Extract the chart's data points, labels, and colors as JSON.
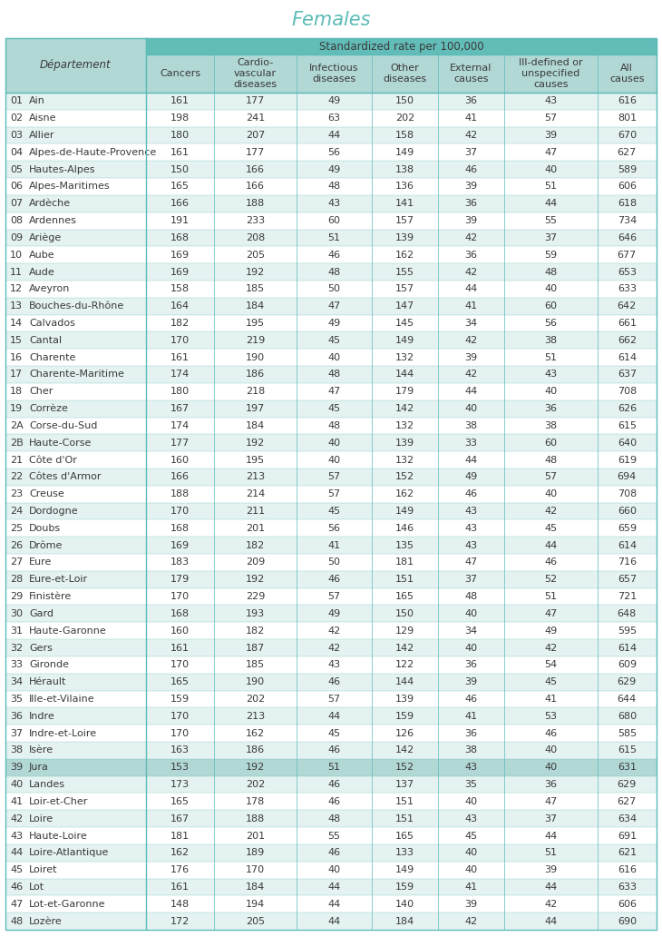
{
  "title": "Females",
  "subtitle": "Standardized rate per 100,000",
  "col_headers": [
    "Cancers",
    "Cardio-\nvascular\ndiseases",
    "Infectious\ndiseases",
    "Other\ndiseases",
    "External\ncauses",
    "Ill-defined or\nunspecified\ncauses",
    "All\ncauses"
  ],
  "dept_col_header": "Département",
  "rows": [
    [
      "01",
      "Ain",
      161,
      177,
      49,
      150,
      36,
      43,
      616
    ],
    [
      "02",
      "Aisne",
      198,
      241,
      63,
      202,
      41,
      57,
      801
    ],
    [
      "03",
      "Allier",
      180,
      207,
      44,
      158,
      42,
      39,
      670
    ],
    [
      "04",
      "Alpes-de-Haute-Provence",
      161,
      177,
      56,
      149,
      37,
      47,
      627
    ],
    [
      "05",
      "Hautes-Alpes",
      150,
      166,
      49,
      138,
      46,
      40,
      589
    ],
    [
      "06",
      "Alpes-Maritimes",
      165,
      166,
      48,
      136,
      39,
      51,
      606
    ],
    [
      "07",
      "Ardèche",
      166,
      188,
      43,
      141,
      36,
      44,
      618
    ],
    [
      "08",
      "Ardennes",
      191,
      233,
      60,
      157,
      39,
      55,
      734
    ],
    [
      "09",
      "Ariège",
      168,
      208,
      51,
      139,
      42,
      37,
      646
    ],
    [
      "10",
      "Aube",
      169,
      205,
      46,
      162,
      36,
      59,
      677
    ],
    [
      "11",
      "Aude",
      169,
      192,
      48,
      155,
      42,
      48,
      653
    ],
    [
      "12",
      "Aveyron",
      158,
      185,
      50,
      157,
      44,
      40,
      633
    ],
    [
      "13",
      "Bouches-du-Rhône",
      164,
      184,
      47,
      147,
      41,
      60,
      642
    ],
    [
      "14",
      "Calvados",
      182,
      195,
      49,
      145,
      34,
      56,
      661
    ],
    [
      "15",
      "Cantal",
      170,
      219,
      45,
      149,
      42,
      38,
      662
    ],
    [
      "16",
      "Charente",
      161,
      190,
      40,
      132,
      39,
      51,
      614
    ],
    [
      "17",
      "Charente-Maritime",
      174,
      186,
      48,
      144,
      42,
      43,
      637
    ],
    [
      "18",
      "Cher",
      180,
      218,
      47,
      179,
      44,
      40,
      708
    ],
    [
      "19",
      "Corrèze",
      167,
      197,
      45,
      142,
      40,
      36,
      626
    ],
    [
      "2A",
      "Corse-du-Sud",
      174,
      184,
      48,
      132,
      38,
      38,
      615
    ],
    [
      "2B",
      "Haute-Corse",
      177,
      192,
      40,
      139,
      33,
      60,
      640
    ],
    [
      "21",
      "Côte d'Or",
      160,
      195,
      40,
      132,
      44,
      48,
      619
    ],
    [
      "22",
      "Côtes d'Armor",
      166,
      213,
      57,
      152,
      49,
      57,
      694
    ],
    [
      "23",
      "Creuse",
      188,
      214,
      57,
      162,
      46,
      40,
      708
    ],
    [
      "24",
      "Dordogne",
      170,
      211,
      45,
      149,
      43,
      42,
      660
    ],
    [
      "25",
      "Doubs",
      168,
      201,
      56,
      146,
      43,
      45,
      659
    ],
    [
      "26",
      "Drôme",
      169,
      182,
      41,
      135,
      43,
      44,
      614
    ],
    [
      "27",
      "Eure",
      183,
      209,
      50,
      181,
      47,
      46,
      716
    ],
    [
      "28",
      "Eure-et-Loir",
      179,
      192,
      46,
      151,
      37,
      52,
      657
    ],
    [
      "29",
      "Finistère",
      170,
      229,
      57,
      165,
      48,
      51,
      721
    ],
    [
      "30",
      "Gard",
      168,
      193,
      49,
      150,
      40,
      47,
      648
    ],
    [
      "31",
      "Haute-Garonne",
      160,
      182,
      42,
      129,
      34,
      49,
      595
    ],
    [
      "32",
      "Gers",
      161,
      187,
      42,
      142,
      40,
      42,
      614
    ],
    [
      "33",
      "Gironde",
      170,
      185,
      43,
      122,
      36,
      54,
      609
    ],
    [
      "34",
      "Hérault",
      165,
      190,
      46,
      144,
      39,
      45,
      629
    ],
    [
      "35",
      "Ille-et-Vilaine",
      159,
      202,
      57,
      139,
      46,
      41,
      644
    ],
    [
      "36",
      "Indre",
      170,
      213,
      44,
      159,
      41,
      53,
      680
    ],
    [
      "37",
      "Indre-et-Loire",
      170,
      162,
      45,
      126,
      36,
      46,
      585
    ],
    [
      "38",
      "Isère",
      163,
      186,
      46,
      142,
      38,
      40,
      615
    ],
    [
      "39",
      "Jura",
      153,
      192,
      51,
      152,
      43,
      40,
      631
    ],
    [
      "40",
      "Landes",
      173,
      202,
      46,
      137,
      35,
      36,
      629
    ],
    [
      "41",
      "Loir-et-Cher",
      165,
      178,
      46,
      151,
      40,
      47,
      627
    ],
    [
      "42",
      "Loire",
      167,
      188,
      48,
      151,
      43,
      37,
      634
    ],
    [
      "43",
      "Haute-Loire",
      181,
      201,
      55,
      165,
      45,
      44,
      691
    ],
    [
      "44",
      "Loire-Atlantique",
      162,
      189,
      46,
      133,
      40,
      51,
      621
    ],
    [
      "45",
      "Loiret",
      176,
      170,
      40,
      149,
      40,
      39,
      616
    ],
    [
      "46",
      "Lot",
      161,
      184,
      44,
      159,
      41,
      44,
      633
    ],
    [
      "47",
      "Lot-et-Garonne",
      148,
      194,
      44,
      140,
      39,
      42,
      606
    ],
    [
      "48",
      "Lozère",
      172,
      205,
      44,
      184,
      42,
      44,
      690
    ]
  ],
  "highlight_dept": "39",
  "header_bg": "#62bdb9",
  "header_bg_light": "#b2d8d6",
  "row_bg_even": "#e4f2f1",
  "row_bg_odd": "#ffffff",
  "highlight_bg": "#b2d8d6",
  "text_color": "#3a3a3a",
  "title_color": "#5bbcb8",
  "border_color": "#5bbcb8",
  "font_size": 8.0,
  "header_font_size": 8.5,
  "title_font_size": 15
}
